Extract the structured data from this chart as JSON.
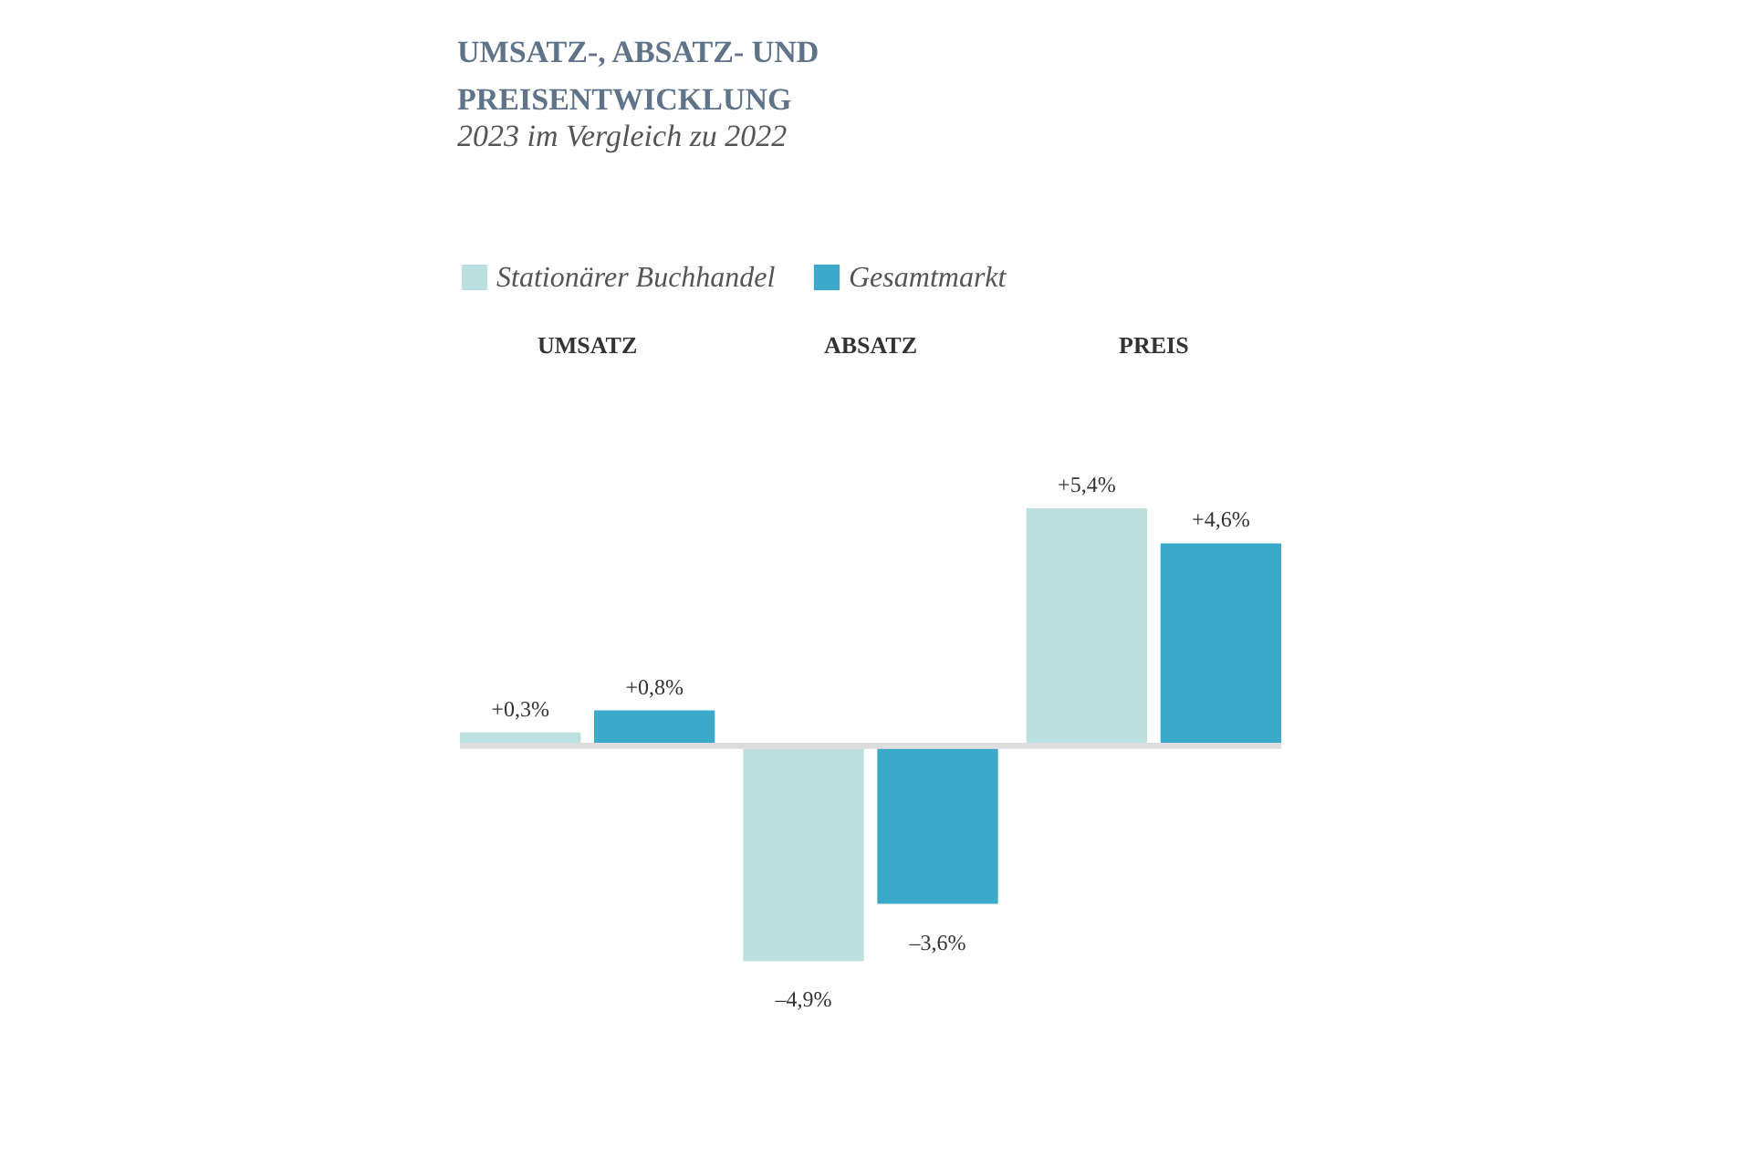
{
  "chart_data": {
    "type": "bar",
    "title": [
      "UMSATZ-, ABSATZ- UND",
      "PREISENTWICKLUNG"
    ],
    "subtitle": "2023 im Vergleich zu 2022",
    "categories": [
      "UMSATZ",
      "ABSATZ",
      "PREIS"
    ],
    "series": [
      {
        "name": "Stationärer Buchhandel",
        "color": "#bcdfdf",
        "values": [
          0.3,
          -4.9,
          5.4
        ],
        "value_labels": [
          "+0,3%",
          "–4,9%",
          "+5,4%"
        ]
      },
      {
        "name": "Gesamtmarkt",
        "color": "#3ba9c9",
        "values": [
          0.8,
          -3.6,
          4.6
        ],
        "value_labels": [
          "+0,8%",
          "–3,6%",
          "+4,6%"
        ]
      }
    ],
    "legend": "top left",
    "tick_labels": "x"
  }
}
